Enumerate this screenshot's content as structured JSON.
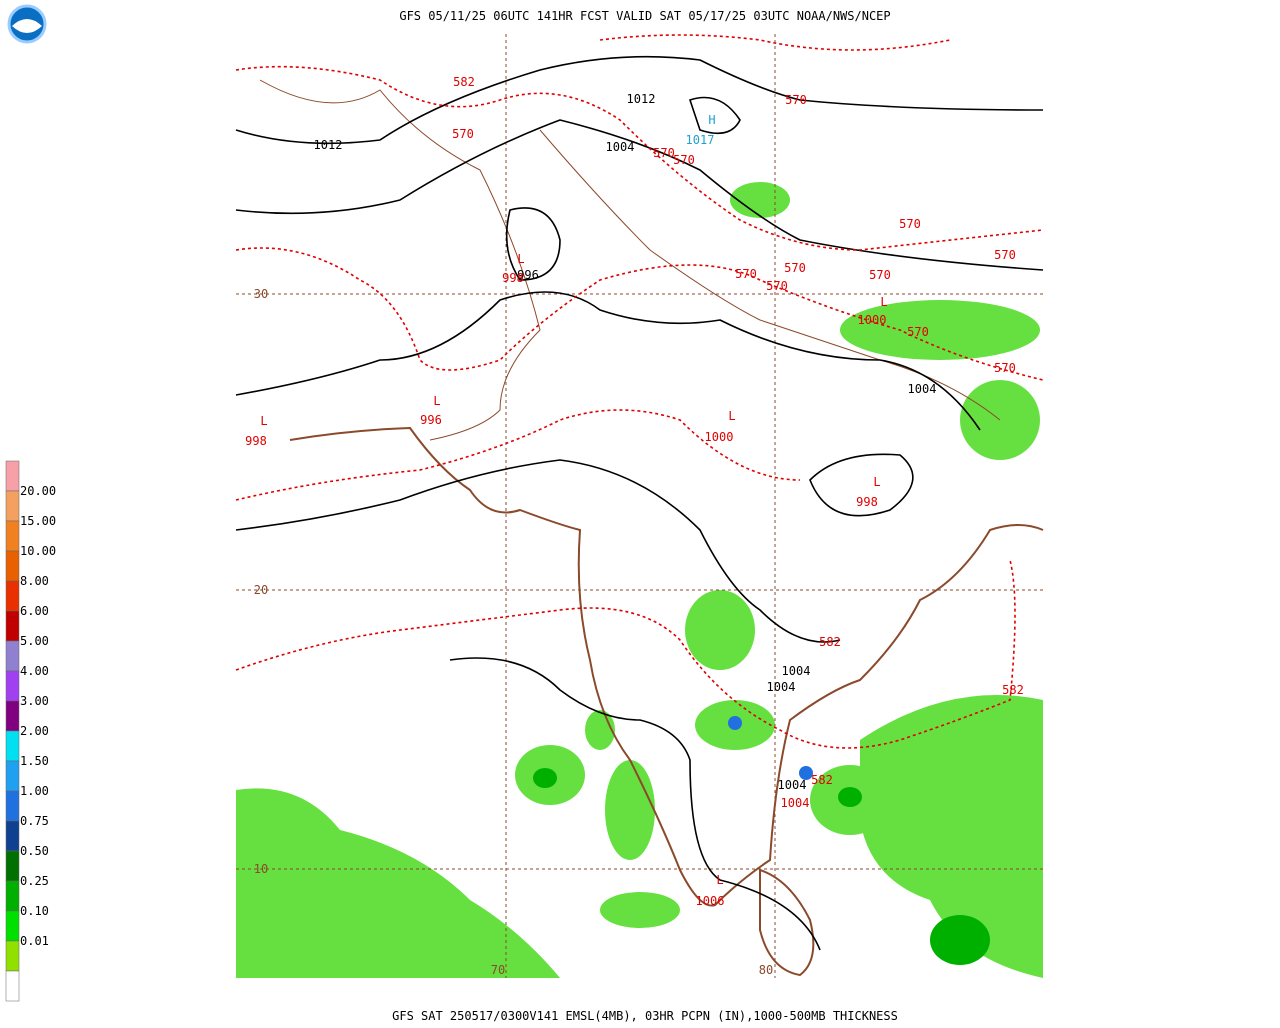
{
  "header": {
    "title": "GFS 05/11/25 06UTC 141HR FCST VALID SAT 05/17/25 03UTC NOAA/NWS/NCEP"
  },
  "footer": {
    "text": "GFS SAT 250517/0300V141 EMSL(4MB), 03HR PCPN (IN),1000-500MB THICKNESS"
  },
  "colorbar": {
    "labels": [
      "20.00",
      "15.00",
      "10.00",
      "8.00",
      "6.00",
      "5.00",
      "4.00",
      "3.00",
      "2.00",
      "1.50",
      "1.00",
      "0.75",
      "0.50",
      "0.25",
      "0.10",
      "0.01"
    ],
    "colors": [
      "#f8a0a8",
      "#f4a060",
      "#f08020",
      "#e86000",
      "#e83000",
      "#c00000",
      "#9080d0",
      "#a040f0",
      "#800080",
      "#00e0f0",
      "#20a0f0",
      "#2070e0",
      "#104090",
      "#007000",
      "#00b000",
      "#00e000",
      "#90e000",
      "#ffffff"
    ]
  },
  "map": {
    "labels": [
      "582",
      "570",
      "1012",
      "1012",
      "1004",
      "H",
      "1017",
      "570",
      "570",
      "570",
      "570",
      "L",
      "996",
      "998",
      "30",
      "570",
      "570",
      "570",
      "570",
      "570",
      "L",
      "1000",
      "570",
      "570",
      "1004",
      "L",
      "998",
      "L",
      "996",
      "L",
      "1000",
      "L",
      "998",
      "20",
      "582",
      "1004",
      "1004",
      "582",
      "582",
      "1004",
      "1004",
      "10",
      "L",
      "1006",
      "70",
      "80"
    ]
  }
}
